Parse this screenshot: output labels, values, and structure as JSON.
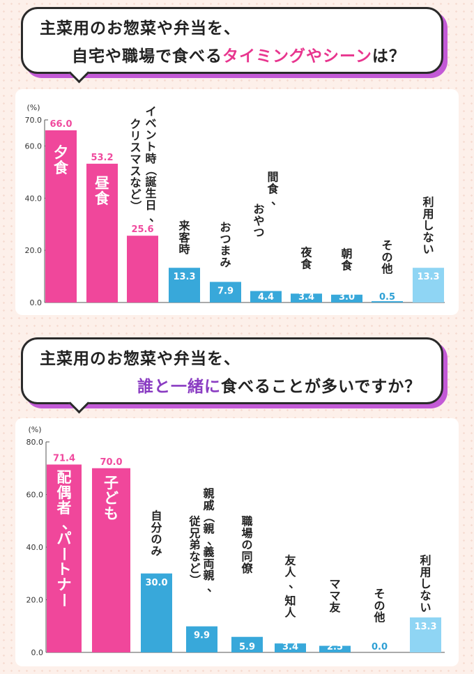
{
  "headings": [
    {
      "line1": "主菜用のお惣菜や弁当を、",
      "line2_a": "自宅や職場で食べる",
      "line2_b": "タイミングやシーン",
      "line2_c": "は？"
    },
    {
      "line1": "主菜用のお惣菜や弁当を、",
      "line2_a": "誰と一緒に",
      "line2_b": "食べることが多いですか？",
      "line2_c": ""
    }
  ],
  "colors": {
    "pink": "#f0479b",
    "blue": "#38a8da",
    "lightblue": "#8fd5f4",
    "pinkText": "#f04a9e",
    "blueText": "#2fa0d4"
  },
  "chart_data": [
    {
      "type": "bar",
      "unit": "(%)",
      "ylim": [
        0,
        70
      ],
      "yticks": [
        "0.0",
        "20.0",
        "40.0",
        "60.0",
        "70.0"
      ],
      "ytick_values": [
        0,
        20,
        40,
        60,
        70
      ],
      "categories": [
        "夕食",
        "昼食",
        "イベント時（誕生日、クリスマスなど）",
        "来客時",
        "おつまみ",
        "間食、おやつ",
        "夜食",
        "朝食",
        "その他",
        "利用しない"
      ],
      "values": [
        66.0,
        53.2,
        25.6,
        13.3,
        7.9,
        4.4,
        3.4,
        3.0,
        0.5,
        13.3
      ],
      "value_labels": [
        "66.0",
        "53.2",
        "25.6",
        "13.3",
        "7.9",
        "4.4",
        "3.4",
        "3.0",
        "0.5",
        "13.3"
      ],
      "bar_colors": [
        "pink",
        "pink",
        "pink",
        "blue",
        "blue",
        "blue",
        "blue",
        "blue",
        "blue",
        "lightblue"
      ]
    },
    {
      "type": "bar",
      "unit": "(%)",
      "ylim": [
        0,
        80
      ],
      "yticks": [
        "0.0",
        "20.0",
        "40.0",
        "60.0",
        "80.0"
      ],
      "ytick_values": [
        0,
        20,
        40,
        60,
        80
      ],
      "categories": [
        "配偶者、パートナー",
        "子ども",
        "自分のみ",
        "親戚（親、義両親、従兄弟など）",
        "職場の同僚",
        "友人、知人",
        "ママ友",
        "その他",
        "利用しない"
      ],
      "values": [
        71.4,
        70.0,
        30.0,
        9.9,
        5.9,
        3.4,
        2.5,
        0.0,
        13.3
      ],
      "value_labels": [
        "71.4",
        "70.0",
        "30.0",
        "9.9",
        "5.9",
        "3.4",
        "2.5",
        "0.0",
        "13.3"
      ],
      "bar_colors": [
        "pink",
        "pink",
        "blue",
        "blue",
        "blue",
        "blue",
        "blue",
        "blue",
        "lightblue"
      ]
    }
  ]
}
